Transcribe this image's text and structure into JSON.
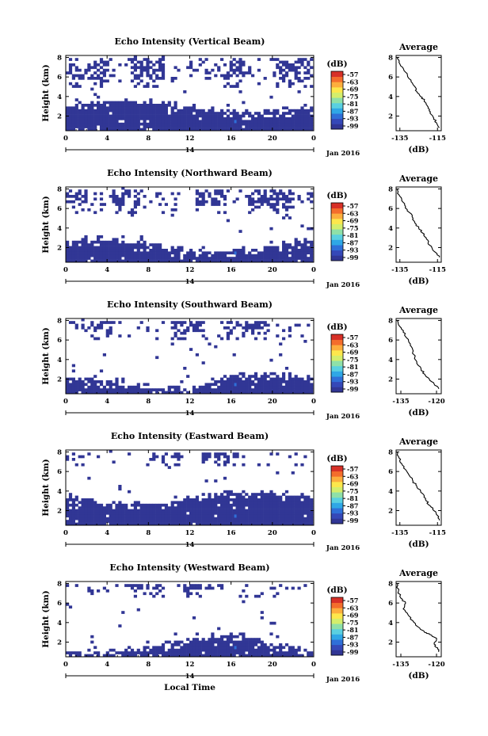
{
  "chart_data": [
    {
      "type": "heatmap",
      "title": "Echo Intensity (Vertical Beam)",
      "ylabel": "Height (km)",
      "x_ticks": [
        "0",
        "4",
        "8",
        "12",
        "16",
        "20",
        "0"
      ],
      "x_date_tick": "14",
      "x_date_label": "Jan 2016",
      "y_ticks": [
        "2",
        "4",
        "6",
        "8"
      ],
      "xlim": [
        0,
        24
      ],
      "ylim": [
        0.5,
        8.2
      ],
      "colorbar": {
        "unit": "(dB)",
        "ticks": [
          "-57",
          "-63",
          "-69",
          "-75",
          "-81",
          "-87",
          "-93",
          "-99"
        ]
      },
      "low_layer_km": 2.9,
      "upper_layer_km": [
        5.0,
        8.0
      ],
      "profile": {
        "title": "Average",
        "xlabel": "(dB)",
        "x_ticks": [
          "-135",
          "-115"
        ],
        "xlim": [
          -137,
          -113
        ],
        "y_ticks": [
          "2",
          "4",
          "6",
          "8"
        ],
        "x": [
          -136.5,
          -135.5,
          -133,
          -131,
          -129,
          -127,
          -126,
          -124,
          -122,
          -121,
          -120,
          -119,
          -117,
          -115.5,
          -114
        ],
        "y": [
          8.0,
          7.5,
          6.8,
          6.2,
          5.5,
          5.0,
          4.5,
          4.0,
          3.6,
          3.2,
          2.8,
          2.3,
          1.8,
          1.3,
          0.8
        ]
      }
    },
    {
      "type": "heatmap",
      "title": "Echo Intensity (Northward Beam)",
      "ylabel": "Height (km)",
      "x_ticks": [
        "0",
        "4",
        "8",
        "12",
        "16",
        "20",
        "0"
      ],
      "x_date_tick": "14",
      "x_date_label": "Jan 2016",
      "y_ticks": [
        "2",
        "4",
        "6",
        "8"
      ],
      "xlim": [
        0,
        24
      ],
      "ylim": [
        0.5,
        8.2
      ],
      "colorbar": {
        "unit": "(dB)",
        "ticks": [
          "-57",
          "-63",
          "-69",
          "-75",
          "-81",
          "-87",
          "-93",
          "-99"
        ]
      },
      "low_layer_km": 2.2,
      "upper_layer_km": [
        5.5,
        8.0
      ],
      "profile": {
        "title": "Average",
        "xlabel": "(dB)",
        "x_ticks": [
          "-135",
          "-115"
        ],
        "xlim": [
          -137,
          -113
        ],
        "y_ticks": [
          "2",
          "4",
          "6",
          "8"
        ],
        "x": [
          -136.5,
          -135.5,
          -134,
          -132,
          -130,
          -128,
          -127,
          -125,
          -123,
          -121,
          -120,
          -118,
          -116,
          -114
        ],
        "y": [
          8.0,
          7.4,
          6.8,
          6.2,
          5.6,
          5.0,
          4.5,
          4.0,
          3.5,
          3.0,
          2.5,
          2.0,
          1.5,
          1.0
        ]
      }
    },
    {
      "type": "heatmap",
      "title": "Echo Intensity (Southward Beam)",
      "ylabel": "Height (km)",
      "x_ticks": [
        "0",
        "4",
        "8",
        "12",
        "16",
        "20",
        "0"
      ],
      "x_date_tick": "14",
      "x_date_label": "Jan 2016",
      "y_ticks": [
        "2",
        "4",
        "6",
        "8"
      ],
      "xlim": [
        0,
        24
      ],
      "ylim": [
        0.5,
        8.2
      ],
      "colorbar": {
        "unit": "(dB)",
        "ticks": [
          "-57",
          "-63",
          "-69",
          "-75",
          "-81",
          "-87",
          "-93",
          "-99"
        ]
      },
      "low_layer_km": 1.6,
      "upper_layer_km": [
        6.0,
        8.0
      ],
      "profile": {
        "title": "Average",
        "xlabel": "(dB)",
        "x_ticks": [
          "-135",
          "-120"
        ],
        "xlim": [
          -137,
          -118
        ],
        "y_ticks": [
          "2",
          "4",
          "6",
          "8"
        ],
        "x": [
          -136.5,
          -135.5,
          -134,
          -132.5,
          -131,
          -130,
          -129.5,
          -129,
          -128,
          -126.5,
          -125,
          -123,
          -121,
          -119
        ],
        "y": [
          8.0,
          7.4,
          6.8,
          6.2,
          5.6,
          5.0,
          4.5,
          4.0,
          3.5,
          3.0,
          2.5,
          2.0,
          1.5,
          1.0
        ]
      }
    },
    {
      "type": "heatmap",
      "title": "Echo Intensity (Eastward Beam)",
      "ylabel": "Height (km)",
      "x_ticks": [
        "0",
        "4",
        "8",
        "12",
        "16",
        "20",
        "0"
      ],
      "x_date_tick": "14",
      "x_date_label": "Jan 2016",
      "y_ticks": [
        "2",
        "4",
        "6",
        "8"
      ],
      "xlim": [
        0,
        24
      ],
      "ylim": [
        0.5,
        8.2
      ],
      "colorbar": {
        "unit": "(dB)",
        "ticks": [
          "-57",
          "-63",
          "-69",
          "-75",
          "-81",
          "-87",
          "-93",
          "-99"
        ]
      },
      "low_layer_km": 3.2,
      "upper_layer_km": [
        6.5,
        8.0
      ],
      "profile": {
        "title": "Average",
        "xlabel": "(dB)",
        "x_ticks": [
          "-135",
          "-115"
        ],
        "xlim": [
          -137,
          -113
        ],
        "y_ticks": [
          "2",
          "4",
          "6",
          "8"
        ],
        "x": [
          -136.5,
          -135.5,
          -134,
          -132,
          -130,
          -128,
          -126,
          -124,
          -122,
          -121,
          -119,
          -117,
          -115,
          -114
        ],
        "y": [
          8.0,
          7.4,
          6.8,
          6.2,
          5.6,
          5.0,
          4.5,
          4.0,
          3.5,
          3.0,
          2.5,
          2.0,
          1.5,
          1.0
        ]
      }
    },
    {
      "type": "heatmap",
      "title": "Echo Intensity (Westward Beam)",
      "ylabel": "Height (km)",
      "xlabel": "Local Time",
      "x_ticks": [
        "0",
        "4",
        "8",
        "12",
        "16",
        "20",
        "0"
      ],
      "x_date_tick": "14",
      "x_date_label": "Jan 2016",
      "y_ticks": [
        "2",
        "4",
        "6",
        "8"
      ],
      "xlim": [
        0,
        24
      ],
      "ylim": [
        0.5,
        8.2
      ],
      "colorbar": {
        "unit": "(dB)",
        "ticks": [
          "-57",
          "-63",
          "-69",
          "-75",
          "-81",
          "-87",
          "-93",
          "-99"
        ]
      },
      "low_layer_km": 1.5,
      "upper_layer_km": [
        6.5,
        8.0
      ],
      "profile": {
        "title": "Average",
        "xlabel": "(dB)",
        "x_ticks": [
          "-135",
          "-120"
        ],
        "xlim": [
          -137,
          -118
        ],
        "y_ticks": [
          "2",
          "4",
          "6",
          "8"
        ],
        "x": [
          -136.5,
          -136,
          -135,
          -133,
          -134,
          -132,
          -130,
          -128,
          -125,
          -123,
          -120,
          -121,
          -119.5,
          -119
        ],
        "y": [
          8.0,
          7.2,
          6.5,
          6.0,
          5.4,
          4.8,
          4.2,
          3.6,
          3.0,
          2.8,
          2.4,
          1.8,
          1.4,
          1.0
        ]
      }
    }
  ],
  "colormap": [
    "#313695",
    "#3548b8",
    "#2f6fd8",
    "#2fa7e6",
    "#5ad0e0",
    "#8fe0a8",
    "#d4ee6c",
    "#fde74c",
    "#fdae3d",
    "#f46d2c",
    "#d73027"
  ]
}
